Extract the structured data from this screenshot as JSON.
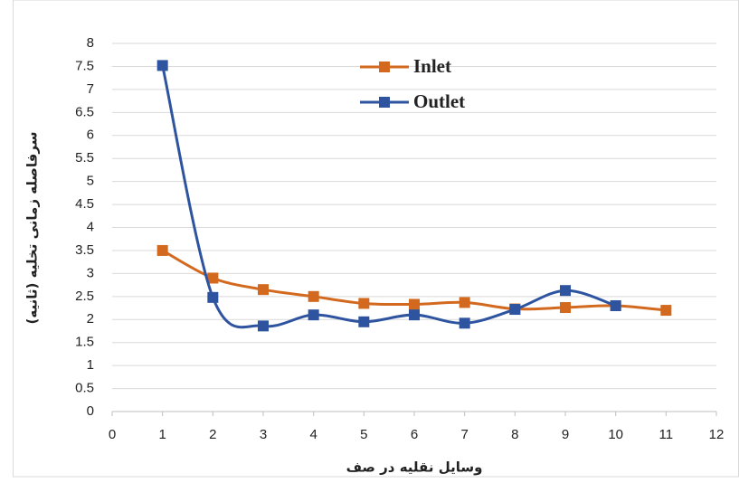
{
  "chart_data": {
    "type": "line",
    "x_label": "وسایل نقلیه در صف",
    "y_label": "سرفاصله زمانی تخلیه (ثانیه)",
    "smooth": true,
    "grid": true,
    "xlim": [
      0,
      12
    ],
    "xticks": [
      0,
      1,
      2,
      3,
      4,
      5,
      6,
      7,
      8,
      9,
      10,
      11,
      12
    ],
    "ylim": [
      0,
      8
    ],
    "yticks": [
      0,
      0.5,
      1,
      1.5,
      2,
      2.5,
      3,
      3.5,
      4,
      4.5,
      5,
      5.5,
      6,
      6.5,
      7,
      7.5,
      8
    ],
    "series": [
      {
        "name": "Inlet",
        "color": "#d2691e",
        "x": [
          1,
          2,
          3,
          4,
          5,
          6,
          7,
          8,
          9,
          10,
          11
        ],
        "values": [
          3.5,
          2.9,
          2.65,
          2.5,
          2.35,
          2.33,
          2.37,
          2.23,
          2.26,
          2.3,
          2.2
        ]
      },
      {
        "name": "Outlet",
        "color": "#2e54a0",
        "x": [
          1,
          2,
          3,
          4,
          5,
          6,
          7,
          8,
          9,
          10
        ],
        "values": [
          7.52,
          2.48,
          1.86,
          2.1,
          1.95,
          2.1,
          1.92,
          2.22,
          2.63,
          2.3
        ]
      }
    ]
  }
}
